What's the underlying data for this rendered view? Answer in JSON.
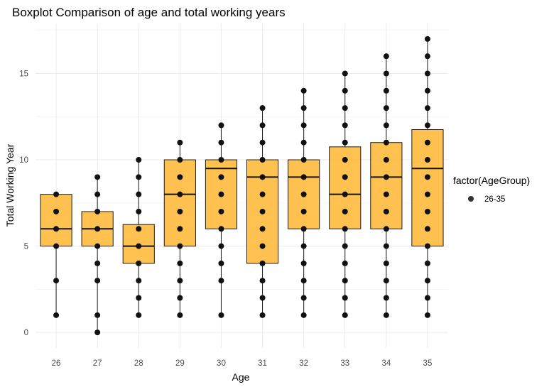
{
  "chart_data": {
    "type": "boxplot",
    "title": "Boxplot Comparison of age and total working years",
    "xlabel": "Age",
    "ylabel": "Total Working Year",
    "categories": [
      "26",
      "27",
      "28",
      "29",
      "30",
      "31",
      "32",
      "33",
      "34",
      "35"
    ],
    "ylim": [
      -0.9,
      17.9
    ],
    "yticks": [
      0,
      5,
      10,
      15
    ],
    "grid": true,
    "box_fill": "#ffb733",
    "box_opacity": 0.85,
    "box_stroke": "#1a1a1a",
    "point_color": "#111111",
    "grid_color": "#ebebeb",
    "legend": {
      "title": "factor(AgeGroup)",
      "entries": [
        "26-35"
      ],
      "placement": "right"
    },
    "boxes": [
      {
        "category": "26",
        "min": 1,
        "q1": 5,
        "median": 6,
        "q3": 8,
        "max": 8
      },
      {
        "category": "27",
        "min": 0,
        "q1": 5,
        "median": 6,
        "q3": 7,
        "max": 9
      },
      {
        "category": "28",
        "min": 1,
        "q1": 4,
        "median": 5,
        "q3": 6.25,
        "max": 10
      },
      {
        "category": "29",
        "min": 1,
        "q1": 5,
        "median": 8,
        "q3": 10,
        "max": 11
      },
      {
        "category": "30",
        "min": 1,
        "q1": 6,
        "median": 9.5,
        "q3": 10,
        "max": 12
      },
      {
        "category": "31",
        "min": 1,
        "q1": 4,
        "median": 9,
        "q3": 10,
        "max": 13
      },
      {
        "category": "32",
        "min": 1,
        "q1": 6,
        "median": 9,
        "q3": 10,
        "max": 14
      },
      {
        "category": "33",
        "min": 1,
        "q1": 6,
        "median": 8,
        "q3": 10.75,
        "max": 15
      },
      {
        "category": "34",
        "min": 1,
        "q1": 6,
        "median": 9,
        "q3": 11,
        "max": 16
      },
      {
        "category": "35",
        "min": 1,
        "q1": 5,
        "median": 9.5,
        "q3": 11.75,
        "max": 17
      }
    ],
    "points": [
      {
        "category": "26",
        "values": [
          1,
          3,
          5,
          6,
          7,
          8
        ]
      },
      {
        "category": "27",
        "values": [
          0,
          1,
          3,
          4,
          5,
          6,
          7,
          8,
          9
        ]
      },
      {
        "category": "28",
        "values": [
          1,
          2,
          3,
          4,
          5,
          6,
          7,
          8,
          9,
          10
        ]
      },
      {
        "category": "29",
        "values": [
          1,
          2,
          3,
          4,
          5,
          6,
          7,
          8,
          9,
          10,
          11
        ]
      },
      {
        "category": "30",
        "values": [
          1,
          3,
          4,
          5,
          6,
          7,
          8,
          9,
          10,
          11,
          12
        ]
      },
      {
        "category": "31",
        "values": [
          1,
          2,
          3,
          4,
          5,
          6,
          7,
          8,
          9,
          10,
          11,
          12,
          13
        ]
      },
      {
        "category": "32",
        "values": [
          1,
          2,
          3,
          4,
          5,
          6,
          7,
          8,
          9,
          10,
          11,
          12,
          13,
          14
        ]
      },
      {
        "category": "33",
        "values": [
          1,
          2,
          3,
          4,
          5,
          6,
          7,
          8,
          9,
          10,
          11,
          12,
          13,
          14,
          15
        ]
      },
      {
        "category": "34",
        "values": [
          1,
          2,
          3,
          4,
          5,
          6,
          7,
          8,
          9,
          10,
          11,
          12,
          13,
          14,
          15,
          16
        ]
      },
      {
        "category": "35",
        "values": [
          1,
          2,
          3,
          4,
          5,
          6,
          7,
          8,
          9,
          10,
          11,
          12,
          13,
          14,
          15,
          16,
          17
        ]
      }
    ]
  }
}
